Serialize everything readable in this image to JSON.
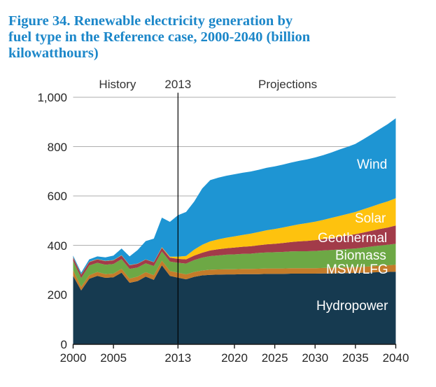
{
  "title_lines": [
    "Figure 34. Renewable electricity generation by",
    "fuel type in the Reference case, 2000-2040 (billion",
    "kilowatthours)"
  ],
  "title_full": "Figure 34. Renewable electricity generation by fuel type in the Reference case, 2000-2040 (billion kilowatthours)",
  "colors": {
    "title_blue": "#1c87c9",
    "grid": "#aeaeae",
    "axis": "#1a1a1a",
    "divider": "#000000",
    "tick_text": "#262626",
    "header_text": "#333333",
    "area_label_text": "#ffffff"
  },
  "chart_data": {
    "type": "area",
    "stacked": true,
    "title": "Renewable electricity generation by fuel type, Reference case, 2000-2040",
    "unit": "billion kilowatthours",
    "xlim": [
      2000,
      2040
    ],
    "ylim": [
      0,
      1000
    ],
    "grid": true,
    "legend_position": "in-plot-right",
    "x_ticks": [
      {
        "value": 2000,
        "label": "2000"
      },
      {
        "value": 2005,
        "label": "2005"
      },
      {
        "value": 2013,
        "label": "2013"
      },
      {
        "value": 2020,
        "label": "2020"
      },
      {
        "value": 2025,
        "label": "2025"
      },
      {
        "value": 2030,
        "label": "2030"
      },
      {
        "value": 2035,
        "label": "2035"
      },
      {
        "value": 2040,
        "label": "2040"
      }
    ],
    "y_ticks": [
      {
        "value": 0,
        "label": "0"
      },
      {
        "value": 200,
        "label": "200"
      },
      {
        "value": 400,
        "label": "400"
      },
      {
        "value": 600,
        "label": "600"
      },
      {
        "value": 800,
        "label": "800"
      },
      {
        "value": 1000,
        "label": "1,000"
      }
    ],
    "annotations": {
      "history_label": "History",
      "divider_label": "2013",
      "projections_label": "Projections",
      "divider_x": 2013
    },
    "x": [
      2000,
      2001,
      2002,
      2003,
      2004,
      2005,
      2006,
      2007,
      2008,
      2009,
      2010,
      2011,
      2012,
      2013,
      2014,
      2015,
      2016,
      2017,
      2018,
      2019,
      2020,
      2021,
      2022,
      2023,
      2024,
      2025,
      2026,
      2027,
      2028,
      2029,
      2030,
      2031,
      2032,
      2033,
      2034,
      2035,
      2036,
      2037,
      2038,
      2039,
      2040
    ],
    "series": [
      {
        "id": "hydropower",
        "label": "Hydropower",
        "color": "#163a50",
        "values": [
          276,
          217,
          264,
          276,
          268,
          270,
          289,
          248,
          255,
          273,
          260,
          319,
          276,
          269,
          262,
          272,
          278,
          280,
          281,
          282,
          282,
          283,
          283,
          283,
          284,
          284,
          284,
          285,
          285,
          285,
          285,
          286,
          286,
          287,
          287,
          288,
          289,
          290,
          291,
          292,
          293
        ]
      },
      {
        "id": "msw-lfg",
        "label": "MSW/LFG",
        "color": "#c47b2a",
        "values": [
          23,
          15,
          15,
          16,
          15,
          15,
          16,
          17,
          18,
          18,
          19,
          19,
          20,
          20,
          20,
          20,
          20,
          21,
          21,
          21,
          21,
          21,
          21,
          22,
          22,
          22,
          22,
          22,
          22,
          22,
          22,
          22,
          23,
          23,
          23,
          23,
          24,
          25,
          26,
          27,
          28
        ]
      },
      {
        "id": "biomass",
        "label": "Biomass",
        "color": "#6da845",
        "values": [
          38,
          35,
          39,
          37,
          38,
          39,
          39,
          39,
          37,
          36,
          37,
          37,
          38,
          40,
          44,
          48,
          52,
          55,
          57,
          59,
          60,
          61,
          62,
          64,
          65,
          66,
          67,
          68,
          69,
          69,
          70,
          71,
          72,
          73,
          75,
          76,
          78,
          80,
          82,
          83,
          85
        ]
      },
      {
        "id": "geothermal",
        "label": "Geothermal",
        "color": "#a23b49",
        "values": [
          14,
          14,
          14,
          14,
          15,
          15,
          15,
          15,
          15,
          15,
          15,
          15,
          16,
          16,
          17,
          18,
          20,
          23,
          25,
          26,
          28,
          29,
          30,
          31,
          33,
          34,
          36,
          38,
          40,
          42,
          44,
          46,
          49,
          52,
          55,
          58,
          61,
          64,
          67,
          70,
          74
        ]
      },
      {
        "id": "solar",
        "label": "Solar",
        "color": "#fec20e",
        "values": [
          1,
          1,
          1,
          1,
          1,
          1,
          1,
          1,
          1,
          1,
          1,
          2,
          4,
          9,
          14,
          24,
          32,
          37,
          40,
          43,
          45,
          48,
          51,
          54,
          57,
          60,
          63,
          66,
          69,
          72,
          75,
          78,
          81,
          84,
          87,
          90,
          94,
          98,
          102,
          106,
          111
        ]
      },
      {
        "id": "wind",
        "label": "Wind",
        "color": "#1e95d3",
        "values": [
          6,
          7,
          10,
          11,
          14,
          18,
          27,
          35,
          55,
          74,
          95,
          120,
          141,
          168,
          178,
          195,
          228,
          248,
          250,
          251,
          252,
          252,
          252,
          252,
          253,
          254,
          255,
          256,
          257,
          258,
          260,
          262,
          265,
          269,
          272,
          276,
          284,
          293,
          303,
          313,
          324
        ]
      }
    ]
  }
}
